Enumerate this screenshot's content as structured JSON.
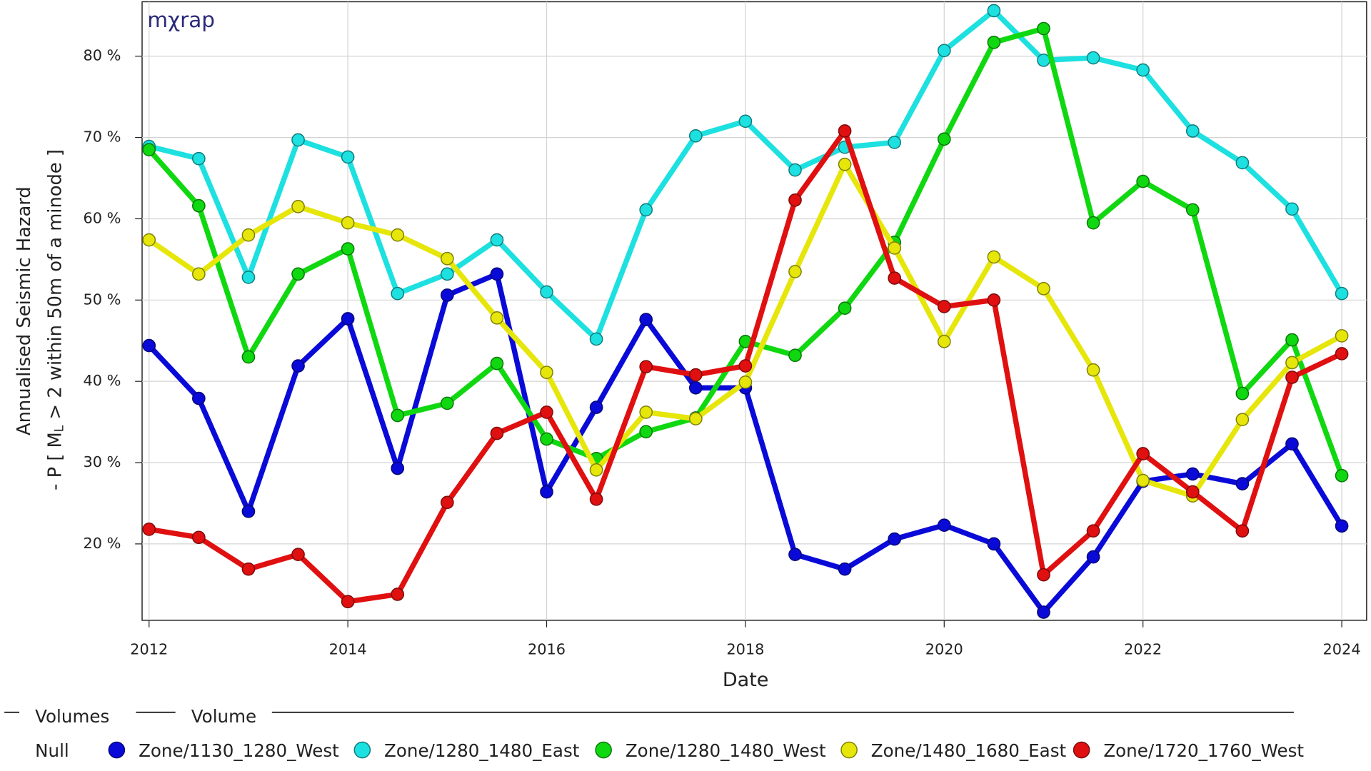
{
  "chart_data": {
    "type": "line",
    "watermark": "mχrap",
    "x_label": "Date",
    "y_label": "Annualised Seismic Hazard",
    "y_label_line2": {
      "before": "- P [ M",
      "subscript": "L",
      "after": " > 2 within 50m of a minode ]"
    },
    "legend_header": [
      "Volumes",
      "Volume"
    ],
    "legend_group": "Null",
    "x": [
      2012,
      2012.5,
      2013,
      2013.5,
      2014,
      2014.5,
      2015,
      2015.5,
      2016,
      2016.5,
      2017,
      2017.5,
      2018,
      2018.5,
      2019,
      2019.5,
      2020,
      2020.5,
      2021,
      2021.5,
      2022,
      2022.5,
      2023,
      2023.5,
      2024
    ],
    "xlim": [
      2011.93,
      2024.25
    ],
    "xticks": [
      2012,
      2014,
      2016,
      2018,
      2020,
      2022,
      2024
    ],
    "ylim": [
      10.6,
      86.7
    ],
    "yticks": [
      {
        "value": 20,
        "label": "20 %"
      },
      {
        "value": 30,
        "label": "30 %"
      },
      {
        "value": 40,
        "label": "40 %"
      },
      {
        "value": 50,
        "label": "50 %"
      },
      {
        "value": 60,
        "label": "60 %"
      },
      {
        "value": 70,
        "label": "70 %"
      },
      {
        "value": 80,
        "label": "80 %"
      }
    ],
    "grid": true,
    "series": [
      {
        "name": "Zone/1130_1280_West",
        "color": "#0a0ad8",
        "values": [
          44.4,
          37.9,
          24.0,
          41.9,
          47.7,
          29.3,
          50.6,
          53.2,
          26.4,
          36.8,
          47.6,
          39.2,
          39.2,
          18.7,
          16.9,
          20.6,
          22.3,
          20.0,
          11.6,
          18.4,
          27.7,
          28.6,
          27.4,
          32.3,
          22.2
        ]
      },
      {
        "name": "Zone/1280_1480_East",
        "color": "#1de0e0",
        "values": [
          68.9,
          67.4,
          52.8,
          69.7,
          67.6,
          50.8,
          53.2,
          57.4,
          51.0,
          45.2,
          61.1,
          70.2,
          72.0,
          66.0,
          68.8,
          69.4,
          80.7,
          85.6,
          79.5,
          79.8,
          78.3,
          70.8,
          66.9,
          61.2,
          50.8
        ]
      },
      {
        "name": "Zone/1280_1480_West",
        "color": "#10d810",
        "values": [
          68.5,
          61.6,
          43.0,
          53.2,
          56.3,
          35.8,
          37.3,
          42.2,
          32.9,
          30.5,
          33.8,
          35.5,
          44.9,
          43.2,
          49.0,
          57.1,
          69.8,
          81.7,
          83.4,
          59.5,
          64.6,
          61.1,
          38.5,
          45.1,
          28.4
        ]
      },
      {
        "name": "Zone/1480_1680_East",
        "color": "#e6e60a",
        "values": [
          57.4,
          53.2,
          58.0,
          61.5,
          59.5,
          58.0,
          55.1,
          47.8,
          41.1,
          29.1,
          36.2,
          35.4,
          39.9,
          53.5,
          66.7,
          56.4,
          44.9,
          55.3,
          51.4,
          41.4,
          27.8,
          25.9,
          35.3,
          42.3,
          45.6
        ]
      },
      {
        "name": "Zone/1720_1760_West",
        "color": "#e01010",
        "values": [
          21.8,
          20.8,
          16.9,
          18.7,
          12.9,
          13.8,
          25.1,
          33.6,
          36.2,
          25.5,
          41.8,
          40.8,
          41.9,
          62.3,
          70.8,
          52.7,
          49.2,
          50.0,
          16.2,
          21.6,
          31.1,
          26.4,
          21.6,
          40.5,
          43.4
        ]
      }
    ]
  }
}
